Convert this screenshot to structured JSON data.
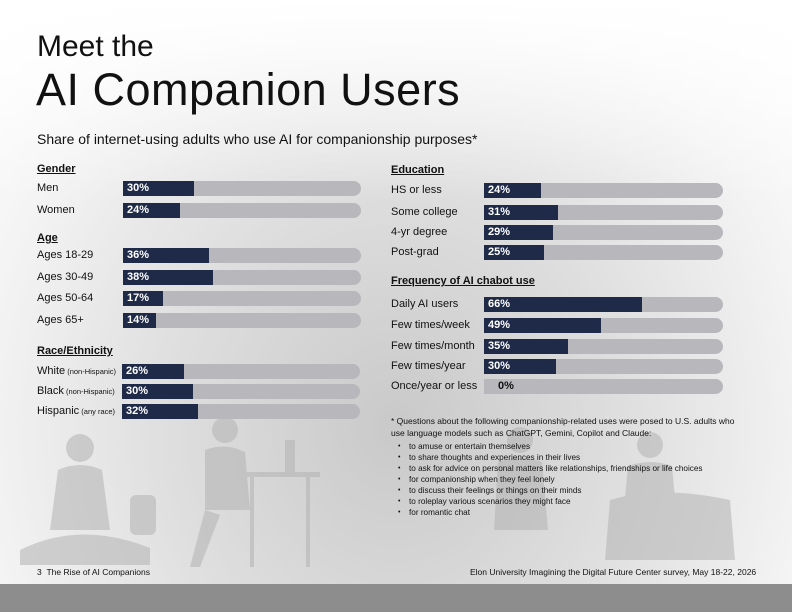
{
  "title": {
    "line1": "Meet the",
    "line2": "AI Companion Users"
  },
  "subtitle": "Share of internet-using adults who use AI for companionship purposes*",
  "chart_data": [
    {
      "type": "bar",
      "title": "Gender",
      "categories": [
        "Men",
        "Women"
      ],
      "values": [
        30,
        24
      ],
      "labels": [
        "30%",
        "24%"
      ],
      "xlim": [
        0,
        100
      ]
    },
    {
      "type": "bar",
      "title": "Age",
      "categories": [
        "Ages 18-29",
        "Ages 30-49",
        "Ages 50-64",
        "Ages 65+"
      ],
      "values": [
        36,
        38,
        17,
        14
      ],
      "labels": [
        "36%",
        "38%",
        "17%",
        "14%"
      ],
      "xlim": [
        0,
        100
      ]
    },
    {
      "type": "bar",
      "title": "Race/Ethnicity",
      "categories": [
        "White",
        "Black",
        "Hispanic"
      ],
      "qualifiers": [
        "(non-Hispanic)",
        "(non-Hispanic)",
        "(any race)"
      ],
      "values": [
        26,
        30,
        32
      ],
      "labels": [
        "26%",
        "30%",
        "32%"
      ],
      "xlim": [
        0,
        100
      ]
    },
    {
      "type": "bar",
      "title": "Education",
      "categories": [
        "HS or less",
        "Some college",
        "4-yr degree",
        "Post-grad"
      ],
      "values": [
        24,
        31,
        29,
        25
      ],
      "labels": [
        "24%",
        "31%",
        "29%",
        "25%"
      ],
      "xlim": [
        0,
        100
      ]
    },
    {
      "type": "bar",
      "title": "Frequency of AI chabot use",
      "categories": [
        "Daily AI users",
        "Few times/week",
        "Few times/month",
        "Few times/year",
        "Once/year or less"
      ],
      "values": [
        66,
        49,
        35,
        30,
        0
      ],
      "labels": [
        "66%",
        "49%",
        "35%",
        "30%",
        "0%"
      ],
      "xlim": [
        0,
        100
      ]
    }
  ],
  "note": {
    "intro": "* Questions about the following companionship-related uses were posed to U.S. adults who use language models such as ChatGPT, Gemini, Copilot and Claude:",
    "items": [
      "to amuse or entertain themselves",
      "to share thoughts and experiences in their lives",
      "to ask for advice on personal matters like relationships, friendships or life choices",
      "for companionship when they feel lonely",
      "to discuss their feelings or things on their minds",
      "to roleplay various scenarios they might face",
      "for romantic chat"
    ]
  },
  "footer": {
    "page_number": "3",
    "left": "The Rise of AI Companions",
    "right": "Elon University Imagining the Digital Future Center survey, May 18-22, 2026"
  },
  "colors": {
    "bar_fill": "#1f2a48",
    "bar_track": "#b7b7bc",
    "footer_band": "#8d8d8d"
  }
}
